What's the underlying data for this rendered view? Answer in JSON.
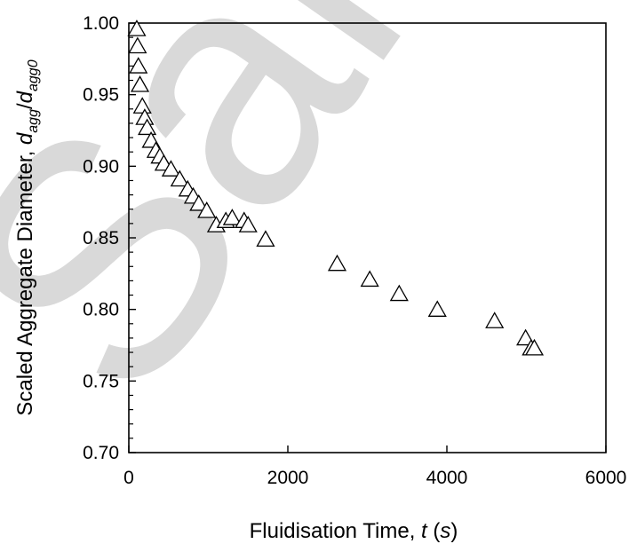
{
  "chart_data": {
    "type": "scatter",
    "xlabel": {
      "main": "Fluidisation Time, ",
      "var": "t",
      "paren_open": " (",
      "unit": "s",
      "paren_close": ")"
    },
    "ylabel": {
      "main": "Scaled  Aggregate Diameter, ",
      "d1": "d",
      "sub1": "agg",
      "slash": "/",
      "d2": "d",
      "sub2": "agg0"
    },
    "xlim": [
      0,
      6000
    ],
    "ylim": [
      0.7,
      1.0
    ],
    "x_ticks": [
      "0",
      "2000",
      "4000",
      "6000"
    ],
    "y_ticks": [
      "0.70",
      "0.75",
      "0.80",
      "0.85",
      "0.90",
      "0.95",
      "1.00"
    ],
    "marker": "open-triangle",
    "grid": false,
    "watermark": "Sample",
    "series": [
      {
        "points": [
          [
            100,
            0.996
          ],
          [
            110,
            0.984
          ],
          [
            120,
            0.97
          ],
          [
            140,
            0.957
          ],
          [
            170,
            0.942
          ],
          [
            200,
            0.934
          ],
          [
            230,
            0.927
          ],
          [
            280,
            0.918
          ],
          [
            340,
            0.911
          ],
          [
            390,
            0.907
          ],
          [
            440,
            0.902
          ],
          [
            530,
            0.898
          ],
          [
            640,
            0.891
          ],
          [
            740,
            0.884
          ],
          [
            810,
            0.879
          ],
          [
            880,
            0.874
          ],
          [
            980,
            0.869
          ],
          [
            1100,
            0.859
          ],
          [
            1220,
            0.862
          ],
          [
            1300,
            0.864
          ],
          [
            1450,
            0.862
          ],
          [
            1500,
            0.859
          ],
          [
            1720,
            0.849
          ],
          [
            2620,
            0.832
          ],
          [
            3030,
            0.821
          ],
          [
            3400,
            0.811
          ],
          [
            3880,
            0.8
          ],
          [
            4600,
            0.792
          ],
          [
            4990,
            0.78
          ],
          [
            5060,
            0.773
          ],
          [
            5100,
            0.773
          ]
        ]
      }
    ]
  }
}
